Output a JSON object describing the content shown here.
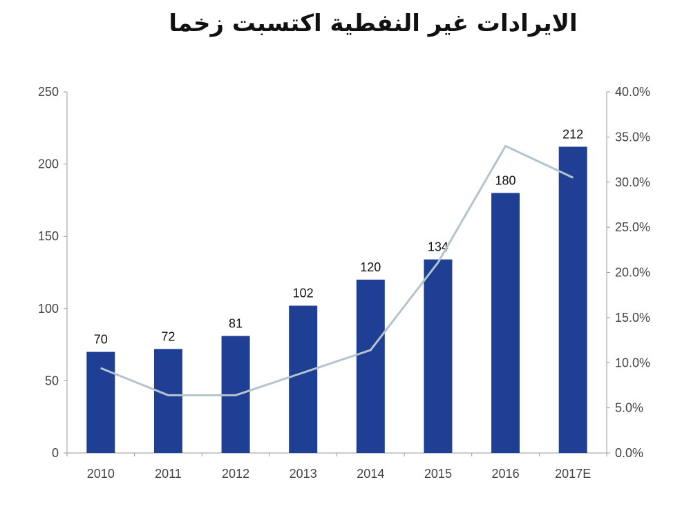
{
  "chart_data": {
    "type": "bar+line",
    "title": "الايرادات غير النفطية اكتسبت زخما",
    "categories": [
      "2010",
      "2011",
      "2012",
      "2013",
      "2014",
      "2015",
      "2016",
      "2017E"
    ],
    "series": [
      {
        "type": "bar",
        "axis": "left",
        "color": "#1f3f94",
        "values": [
          70,
          72,
          81,
          102,
          120,
          134,
          180,
          212
        ],
        "data_labels": [
          "70",
          "72",
          "81",
          "102",
          "120",
          "134",
          "180",
          "212"
        ]
      },
      {
        "type": "line",
        "axis": "right",
        "color": "#b4c4cc",
        "values": [
          9.4,
          6.4,
          6.4,
          8.9,
          11.4,
          21.1,
          34.0,
          30.5
        ]
      }
    ],
    "left_axis": {
      "ylim": [
        0,
        250
      ],
      "ticks": [
        "0",
        "50",
        "100",
        "150",
        "200",
        "250"
      ]
    },
    "right_axis": {
      "ylim": [
        0,
        40
      ],
      "ticks": [
        "0.0%",
        "5.0%",
        "10.0%",
        "15.0%",
        "20.0%",
        "25.0%",
        "30.0%",
        "35.0%",
        "40.0%"
      ]
    },
    "grid": false,
    "legend": "none"
  }
}
